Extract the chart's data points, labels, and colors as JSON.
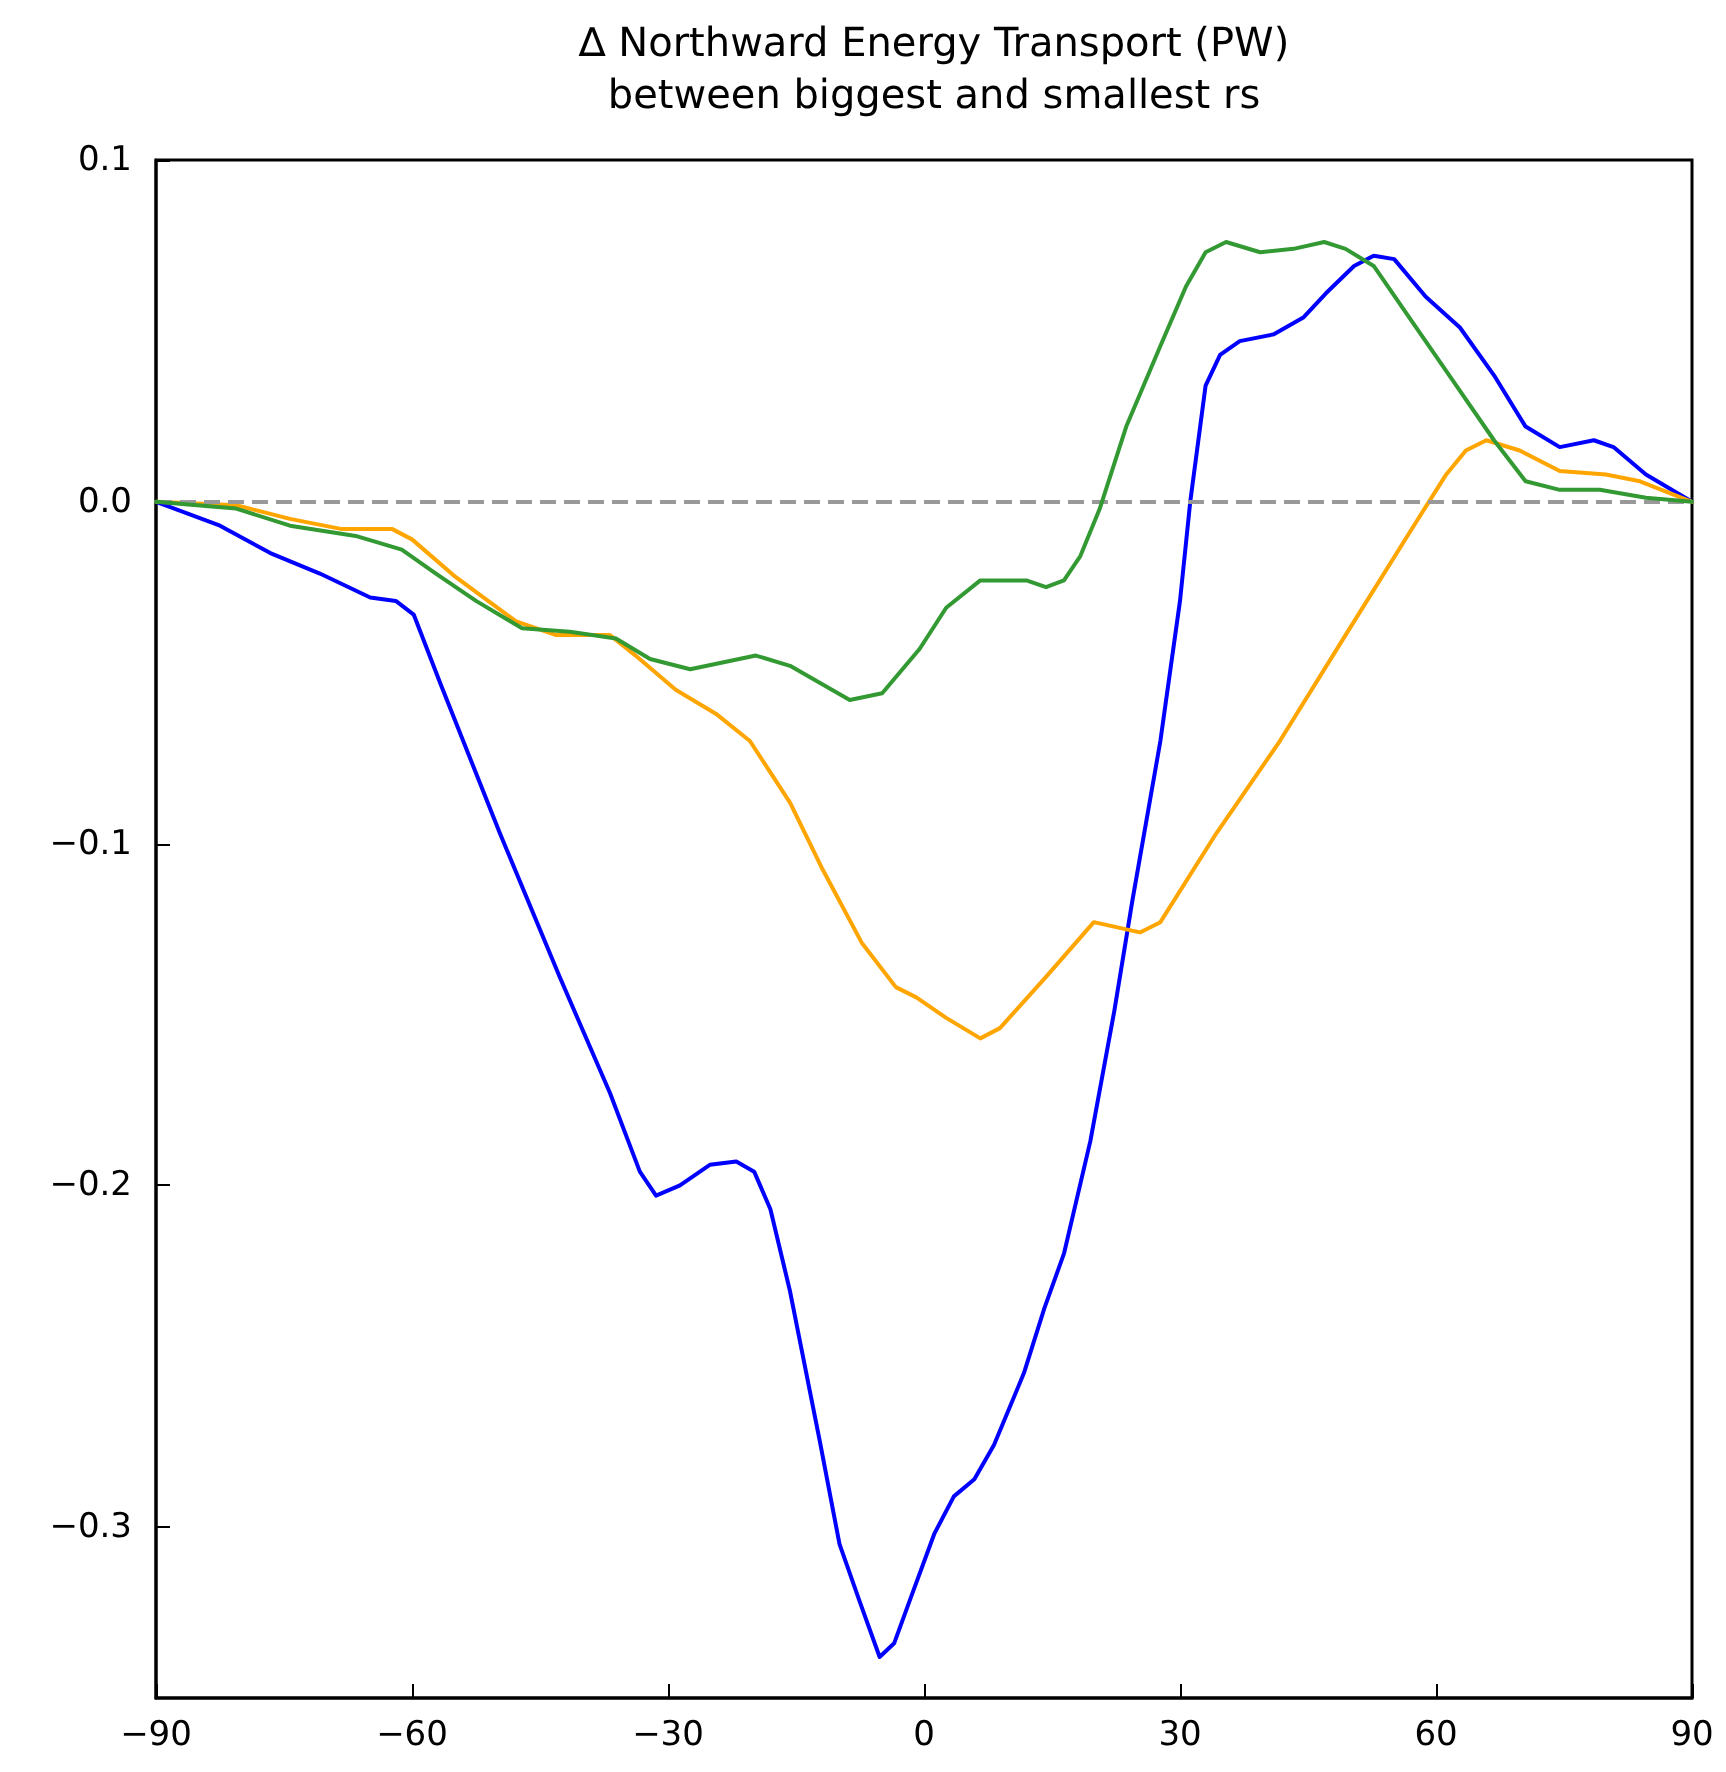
{
  "chart_data": {
    "type": "line",
    "title": "∆ Northward Energy Transport (PW)",
    "subtitle": "between biggest and smallest rs",
    "xlim": [
      -90,
      90
    ],
    "xticks": [
      -90,
      -60,
      -30,
      0,
      30,
      60,
      90
    ],
    "ylim": [
      -0.35,
      0.1
    ],
    "yticks": [
      -0.3,
      -0.2,
      -0.1,
      {
        "value": 0,
        "label": "0.0"
      },
      0.1
    ],
    "grid": false,
    "marker": "none",
    "line_style": "solid",
    "ref_lines": [
      {
        "axis": "y",
        "value": 0,
        "color": "#999999",
        "line_style": "dashed"
      }
    ],
    "series": [
      {
        "color": "#0000ff",
        "x": [
          -90,
          -82.5,
          -76.6,
          -70.8,
          -64.9,
          -61.9,
          -59.8,
          -56.7,
          -49.7,
          -42.7,
          -36.8,
          -33.3,
          -31.4,
          -28.6,
          -25.1,
          -22,
          -19.9,
          -18,
          -15.7,
          -12.2,
          -9.9,
          -7.5,
          -5.2,
          -3.5,
          -1.6,
          1.2,
          3.5,
          5.9,
          8.2,
          11.7,
          14.1,
          16.4,
          19.5,
          22.3,
          24.4,
          27.7,
          30,
          31.2,
          33,
          34.7,
          37,
          41,
          44.5,
          47.1,
          50.4,
          52.7,
          55.1,
          58.8,
          62.8,
          66.8,
          70.5,
          74.5,
          78.5,
          80.8,
          84.6,
          90
        ],
        "values": [
          0,
          -0.007,
          -0.015,
          -0.021,
          -0.028,
          -0.029,
          -0.033,
          -0.053,
          -0.097,
          -0.139,
          -0.173,
          -0.196,
          -0.203,
          -0.2,
          -0.194,
          -0.193,
          -0.196,
          -0.207,
          -0.231,
          -0.275,
          -0.305,
          -0.322,
          -0.338,
          -0.334,
          -0.321,
          -0.302,
          -0.291,
          -0.286,
          -0.276,
          -0.255,
          -0.236,
          -0.22,
          -0.187,
          -0.149,
          -0.117,
          -0.07,
          -0.029,
          0,
          0.034,
          0.043,
          0.047,
          0.049,
          0.054,
          0.061,
          0.069,
          0.072,
          0.071,
          0.06,
          0.051,
          0.037,
          0.022,
          0.016,
          0.018,
          0.016,
          0.008,
          0
        ]
      },
      {
        "color": "#ffa500",
        "x": [
          -90,
          -80.6,
          -74.3,
          -68.2,
          -62.3,
          -60,
          -54.9,
          -47.8,
          -43.1,
          -36.8,
          -33.8,
          -29.1,
          -24.4,
          -20.4,
          -15.7,
          -12,
          -7.3,
          -3.3,
          -0.9,
          2.6,
          6.6,
          8.9,
          14.3,
          19.9,
          25.3,
          27.7,
          34,
          41.7,
          49.4,
          57.4,
          61.2,
          63.5,
          65.9,
          69.8,
          74.5,
          79.9,
          83.9,
          90
        ],
        "values": [
          0,
          -0.001,
          -0.005,
          -0.008,
          -0.008,
          -0.011,
          -0.022,
          -0.035,
          -0.039,
          -0.039,
          -0.045,
          -0.055,
          -0.062,
          -0.07,
          -0.088,
          -0.107,
          -0.129,
          -0.142,
          -0.145,
          -0.151,
          -0.157,
          -0.154,
          -0.139,
          -0.123,
          -0.126,
          -0.123,
          -0.098,
          -0.07,
          -0.039,
          -0.007,
          0.008,
          0.015,
          0.018,
          0.015,
          0.009,
          0.008,
          0.006,
          0
        ]
      },
      {
        "color": "#339933",
        "x": [
          -90,
          -80.6,
          -74.3,
          -66.6,
          -61.2,
          -57.2,
          -52.5,
          -47.1,
          -41.5,
          -36.1,
          -32.1,
          -27.4,
          -19.7,
          -15.7,
          -8.7,
          -4.9,
          -0.5,
          2.6,
          6.6,
          12,
          14.3,
          16.4,
          18.3,
          20.6,
          23.7,
          27.6,
          30.7,
          33,
          35.4,
          39.4,
          43.3,
          46.9,
          49.4,
          52.7,
          57.4,
          62.1,
          66.8,
          70.5,
          74.5,
          79.2,
          84.6,
          90
        ],
        "values": [
          0,
          -0.002,
          -0.007,
          -0.01,
          -0.014,
          -0.021,
          -0.029,
          -0.037,
          -0.038,
          -0.04,
          -0.046,
          -0.049,
          -0.045,
          -0.048,
          -0.058,
          -0.056,
          -0.043,
          -0.031,
          -0.023,
          -0.023,
          -0.025,
          -0.023,
          -0.016,
          -0.002,
          0.022,
          0.045,
          0.063,
          0.073,
          0.076,
          0.073,
          0.074,
          0.076,
          0.074,
          0.069,
          0.052,
          0.035,
          0.018,
          0.006,
          0.0035,
          0.0035,
          0.0012,
          0
        ]
      }
    ]
  }
}
